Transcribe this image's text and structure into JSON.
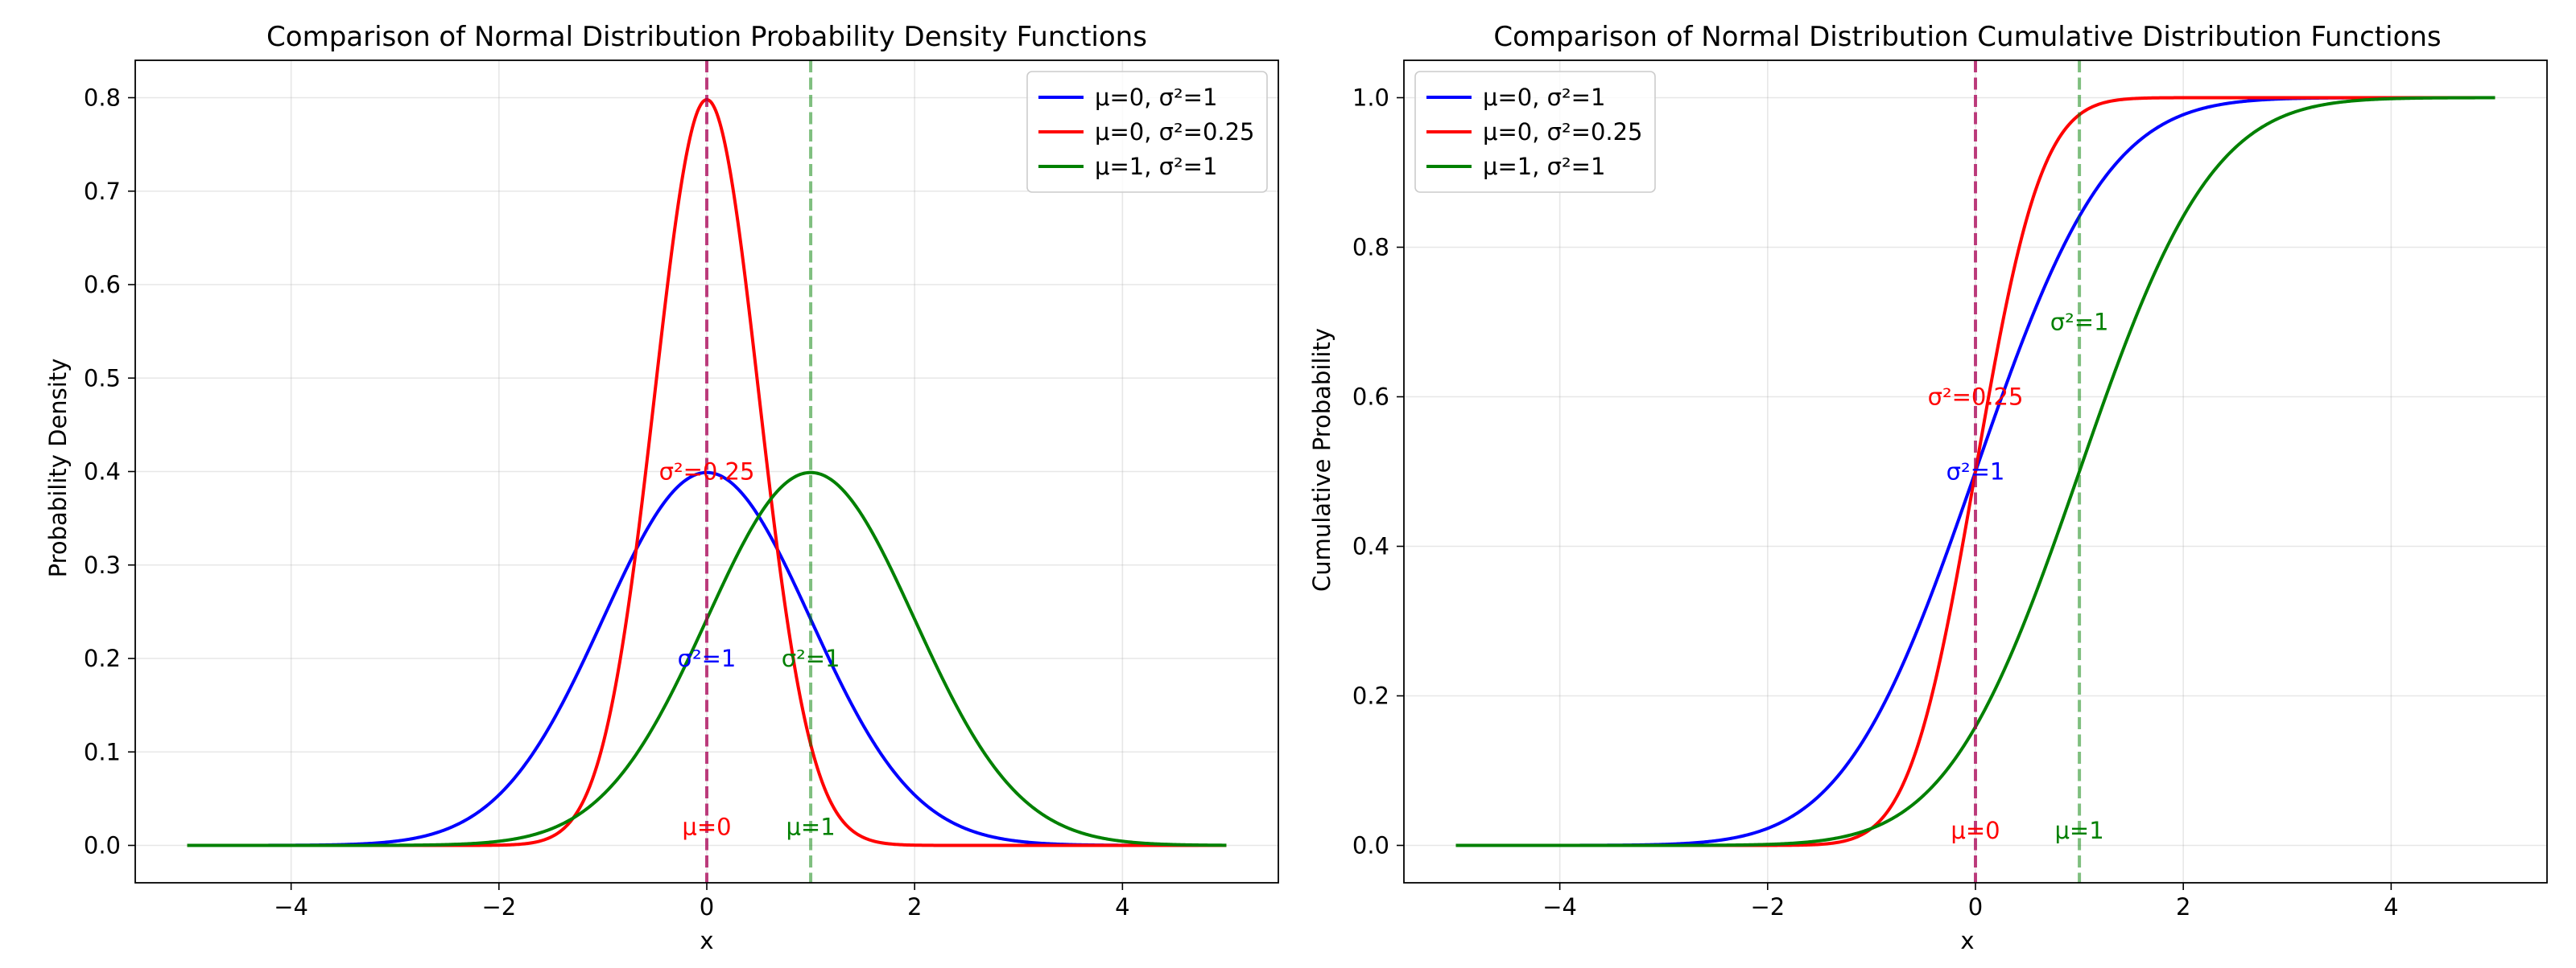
{
  "chart_data": [
    {
      "type": "line",
      "title": "Comparison of Normal Distribution Probability Density Functions",
      "xlabel": "x",
      "ylabel": "Probability Density",
      "xlim": [
        -5.5,
        5.5
      ],
      "ylim": [
        -0.04,
        0.84
      ],
      "xticks": [
        -4,
        -2,
        0,
        2,
        4
      ],
      "xtick_labels": [
        "−4",
        "−2",
        "0",
        "2",
        "4"
      ],
      "yticks": [
        0.0,
        0.1,
        0.2,
        0.3,
        0.4,
        0.5,
        0.6,
        0.7,
        0.8
      ],
      "ytick_labels": [
        "0.0",
        "0.1",
        "0.2",
        "0.3",
        "0.4",
        "0.5",
        "0.6",
        "0.7",
        "0.8"
      ],
      "grid": true,
      "legend_position": "top-right",
      "x_range": [
        -5,
        5
      ],
      "series": [
        {
          "name": "μ=0, σ²=1",
          "mu": 0,
          "variance": 1,
          "color": "#0000ff",
          "x": [
            -5,
            -4,
            -3,
            -2,
            -1.5,
            -1,
            -0.5,
            0,
            0.5,
            1,
            1.5,
            2,
            3,
            4,
            5
          ],
          "y": [
            0.0,
            0.0001,
            0.0044,
            0.054,
            0.1295,
            0.242,
            0.3521,
            0.3989,
            0.3521,
            0.242,
            0.1295,
            0.054,
            0.0044,
            0.0001,
            0.0
          ]
        },
        {
          "name": "μ=0, σ²=0.25",
          "mu": 0,
          "variance": 0.25,
          "color": "#ff0000",
          "x": [
            -5,
            -2,
            -1.5,
            -1,
            -0.75,
            -0.5,
            -0.25,
            0,
            0.25,
            0.5,
            0.75,
            1,
            1.5,
            2,
            5
          ],
          "y": [
            0.0,
            0.0001,
            0.0089,
            0.108,
            0.259,
            0.4839,
            0.7041,
            0.7979,
            0.7041,
            0.4839,
            0.259,
            0.108,
            0.0089,
            0.0001,
            0.0
          ]
        },
        {
          "name": "μ=1, σ²=1",
          "mu": 1,
          "variance": 1,
          "color": "#008000",
          "x": [
            -5,
            -3,
            -2,
            -1,
            -0.5,
            0,
            0.5,
            1,
            1.5,
            2,
            2.5,
            3,
            4,
            5
          ],
          "y": [
            0.0,
            0.0001,
            0.0044,
            0.054,
            0.1295,
            0.242,
            0.3521,
            0.3989,
            0.3521,
            0.242,
            0.1295,
            0.054,
            0.0044,
            0.0001
          ]
        }
      ],
      "vlines": [
        {
          "x": 0,
          "color": "#0000ff"
        },
        {
          "x": 0,
          "color": "#ff0000"
        },
        {
          "x": 1,
          "color": "#008000"
        }
      ],
      "annotations": [
        {
          "text": "μ=0",
          "x": 0,
          "y": 0.02,
          "color": "#ff0000"
        },
        {
          "text": "μ=1",
          "x": 1,
          "y": 0.02,
          "color": "#008000"
        },
        {
          "text": "σ²=1",
          "x": 0,
          "y": 0.2,
          "color": "#0000ff"
        },
        {
          "text": "σ²=0.25",
          "x": 0,
          "y": 0.4,
          "color": "#ff0000"
        },
        {
          "text": "σ²=1",
          "x": 1,
          "y": 0.2,
          "color": "#008000"
        }
      ]
    },
    {
      "type": "line",
      "title": "Comparison of Normal Distribution Cumulative Distribution Functions",
      "xlabel": "x",
      "ylabel": "Cumulative Probability",
      "xlim": [
        -5.5,
        5.5
      ],
      "ylim": [
        -0.05,
        1.05
      ],
      "xticks": [
        -4,
        -2,
        0,
        2,
        4
      ],
      "xtick_labels": [
        "−4",
        "−2",
        "0",
        "2",
        "4"
      ],
      "yticks": [
        0.0,
        0.2,
        0.4,
        0.6,
        0.8,
        1.0
      ],
      "ytick_labels": [
        "0.0",
        "0.2",
        "0.4",
        "0.6",
        "0.8",
        "1.0"
      ],
      "grid": true,
      "legend_position": "top-left",
      "x_range": [
        -5,
        5
      ],
      "series": [
        {
          "name": "μ=0, σ²=1",
          "mu": 0,
          "variance": 1,
          "color": "#0000ff",
          "x": [
            -5,
            -4,
            -3,
            -2,
            -1,
            0,
            1,
            2,
            3,
            4,
            5
          ],
          "y": [
            0.0,
            0.0,
            0.0013,
            0.0228,
            0.1587,
            0.5,
            0.8413,
            0.9772,
            0.9987,
            1.0,
            1.0
          ]
        },
        {
          "name": "μ=0, σ²=0.25",
          "mu": 0,
          "variance": 0.25,
          "color": "#ff0000",
          "x": [
            -5,
            -1.5,
            -1,
            -0.5,
            0,
            0.5,
            1,
            1.5,
            5
          ],
          "y": [
            0.0,
            0.0013,
            0.0228,
            0.1587,
            0.5,
            0.8413,
            0.9772,
            0.9987,
            1.0
          ]
        },
        {
          "name": "μ=1, σ²=1",
          "mu": 1,
          "variance": 1,
          "color": "#008000",
          "x": [
            -5,
            -3,
            -2,
            -1,
            0,
            1,
            2,
            3,
            4,
            5
          ],
          "y": [
            0.0,
            0.0,
            0.0013,
            0.0228,
            0.1587,
            0.5,
            0.8413,
            0.9772,
            0.9987,
            1.0
          ]
        }
      ],
      "vlines": [
        {
          "x": 0,
          "color": "#0000ff"
        },
        {
          "x": 0,
          "color": "#ff0000"
        },
        {
          "x": 1,
          "color": "#008000"
        }
      ],
      "annotations": [
        {
          "text": "μ=0",
          "x": 0,
          "y": 0.02,
          "color": "#ff0000"
        },
        {
          "text": "μ=1",
          "x": 1,
          "y": 0.02,
          "color": "#008000"
        },
        {
          "text": "σ²=1",
          "x": 0,
          "y": 0.5,
          "color": "#0000ff"
        },
        {
          "text": "σ²=0.25",
          "x": 0,
          "y": 0.6,
          "color": "#ff0000"
        },
        {
          "text": "σ²=1",
          "x": 1,
          "y": 0.7,
          "color": "#008000"
        }
      ]
    }
  ]
}
